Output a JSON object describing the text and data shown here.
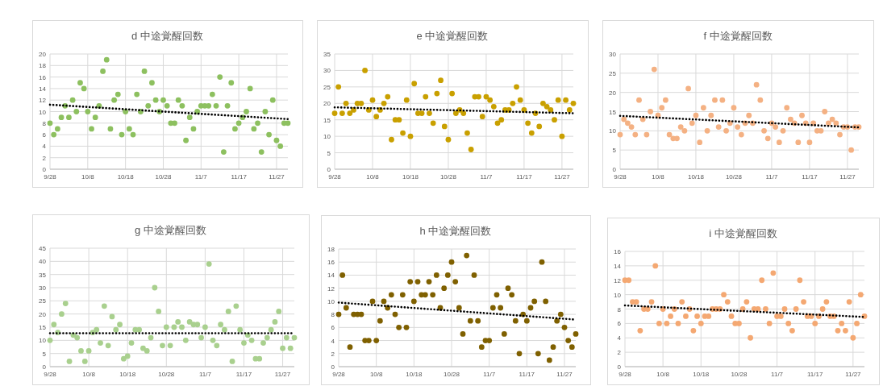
{
  "chart_data": [
    {
      "type": "scatter",
      "title": "d 中途覚醒回数",
      "marker": "circle",
      "grid": true,
      "x": [
        "--09-28",
        "--09-29",
        "--09-30",
        "--10-01",
        "--10-02",
        "--10-03",
        "--10-04",
        "--10-05",
        "--10-06",
        "--10-07",
        "--10-08",
        "--10-09",
        "--10-10",
        "--10-11",
        "--10-12",
        "--10-13",
        "--10-14",
        "--10-15",
        "--10-16",
        "--10-17",
        "--10-18",
        "--10-19",
        "--10-20",
        "--10-21",
        "--10-22",
        "--10-23",
        "--10-24",
        "--10-25",
        "--10-26",
        "--10-27",
        "--10-28",
        "--10-29",
        "--10-30",
        "--10-31",
        "--11-01",
        "--11-02",
        "--11-03",
        "--11-04",
        "--11-05",
        "--11-06",
        "--11-07",
        "--11-08",
        "--11-09",
        "--11-10",
        "--11-11",
        "--11-12",
        "--11-13",
        "--11-14",
        "--11-15",
        "--11-16",
        "--11-17",
        "--11-18",
        "--11-19",
        "--11-20",
        "--11-21",
        "--11-22",
        "--11-23",
        "--11-24",
        "--11-25",
        "--11-26",
        "--11-27",
        "--11-28",
        "--11-29",
        "--11-30"
      ],
      "xlim": [
        "--09-28",
        "--11-30"
      ],
      "xticks": [
        {
          "value": "--09-28",
          "label": "9/28"
        },
        {
          "value": "--10-08",
          "label": "10/8"
        },
        {
          "value": "--10-18",
          "label": "10/18"
        },
        {
          "value": "--10-28",
          "label": "10/28"
        },
        {
          "value": "--11-07",
          "label": "11/7"
        },
        {
          "value": "--11-17",
          "label": "11/17"
        },
        {
          "value": "--11-27",
          "label": "11/27"
        }
      ],
      "ylim": [
        0,
        20
      ],
      "yticks": [
        0,
        2,
        4,
        6,
        8,
        10,
        12,
        14,
        16,
        18,
        20
      ],
      "series": [
        {
          "color": "#8dc05f",
          "values": [
            8,
            6,
            7,
            9,
            11,
            9,
            12,
            10,
            15,
            14,
            10,
            7,
            9,
            11,
            17,
            19,
            7,
            12,
            13,
            6,
            10,
            7,
            6,
            13,
            10,
            17,
            11,
            15,
            12,
            10,
            12,
            11,
            8,
            8,
            12,
            11,
            5,
            9,
            7,
            10,
            11,
            11,
            11,
            13,
            11,
            16,
            3,
            11,
            15,
            7,
            8,
            9,
            10,
            14,
            7,
            8,
            3,
            10,
            6,
            12,
            5,
            4,
            8,
            8
          ]
        },
        {
          "type": "line",
          "x": [
            "--09-28",
            "--11-30"
          ],
          "values": [
            11.2,
            8.7
          ],
          "marker": "none",
          "color": "#000000",
          "line_style": "dotted"
        }
      ]
    },
    {
      "type": "scatter",
      "title": "e 中途覚醒回数",
      "marker": "circle",
      "grid": true,
      "x": [
        "--09-28",
        "--09-29",
        "--09-30",
        "--10-01",
        "--10-02",
        "--10-03",
        "--10-04",
        "--10-05",
        "--10-06",
        "--10-07",
        "--10-08",
        "--10-09",
        "--10-10",
        "--10-11",
        "--10-12",
        "--10-13",
        "--10-14",
        "--10-15",
        "--10-16",
        "--10-17",
        "--10-18",
        "--10-19",
        "--10-20",
        "--10-21",
        "--10-22",
        "--10-23",
        "--10-24",
        "--10-25",
        "--10-26",
        "--10-27",
        "--10-28",
        "--10-29",
        "--10-30",
        "--10-31",
        "--11-01",
        "--11-02",
        "--11-03",
        "--11-04",
        "--11-05",
        "--11-06",
        "--11-07",
        "--11-08",
        "--11-09",
        "--11-10",
        "--11-11",
        "--11-12",
        "--11-13",
        "--11-14",
        "--11-15",
        "--11-16",
        "--11-17",
        "--11-18",
        "--11-19",
        "--11-20",
        "--11-21",
        "--11-22",
        "--11-23",
        "--11-24",
        "--11-25",
        "--11-26",
        "--11-27",
        "--11-28",
        "--11-29",
        "--11-30"
      ],
      "xlim": [
        "--09-28",
        "--11-30"
      ],
      "xticks": [
        {
          "value": "--09-28",
          "label": "9/28"
        },
        {
          "value": "--10-08",
          "label": "10/8"
        },
        {
          "value": "--10-18",
          "label": "10/18"
        },
        {
          "value": "--10-28",
          "label": "10/28"
        },
        {
          "value": "--11-07",
          "label": "11/7"
        },
        {
          "value": "--11-17",
          "label": "11/17"
        },
        {
          "value": "--11-27",
          "label": "11/27"
        }
      ],
      "ylim": [
        0,
        35
      ],
      "yticks": [
        0,
        5,
        10,
        15,
        20,
        25,
        30,
        35
      ],
      "series": [
        {
          "color": "#c9a000",
          "values": [
            17,
            25,
            17,
            20,
            17,
            18,
            20,
            20,
            30,
            18,
            21,
            16,
            18,
            20,
            22,
            9,
            15,
            15,
            11,
            21,
            10,
            26,
            17,
            17,
            22,
            17,
            14,
            23,
            27,
            13,
            9,
            23,
            17,
            18,
            17,
            11,
            6,
            22,
            22,
            16,
            22,
            21,
            19,
            14,
            15,
            18,
            18,
            20,
            25,
            21,
            18,
            14,
            11,
            17,
            13,
            20,
            19,
            18,
            15,
            21,
            10,
            21,
            18,
            20
          ]
        },
        {
          "type": "line",
          "x": [
            "--09-28",
            "--11-30"
          ],
          "values": [
            18.8,
            17.0
          ],
          "marker": "none",
          "color": "#000000",
          "line_style": "dotted"
        }
      ]
    },
    {
      "type": "scatter",
      "title": "f 中途覚醒回数",
      "marker": "circle",
      "grid": true,
      "x": [
        "--09-28",
        "--09-29",
        "--09-30",
        "--10-01",
        "--10-02",
        "--10-03",
        "--10-04",
        "--10-05",
        "--10-06",
        "--10-07",
        "--10-08",
        "--10-09",
        "--10-10",
        "--10-11",
        "--10-12",
        "--10-13",
        "--10-14",
        "--10-15",
        "--10-16",
        "--10-17",
        "--10-18",
        "--10-19",
        "--10-20",
        "--10-21",
        "--10-22",
        "--10-23",
        "--10-24",
        "--10-25",
        "--10-26",
        "--10-27",
        "--10-28",
        "--10-29",
        "--10-30",
        "--10-31",
        "--11-01",
        "--11-02",
        "--11-03",
        "--11-04",
        "--11-05",
        "--11-06",
        "--11-07",
        "--11-08",
        "--11-09",
        "--11-10",
        "--11-11",
        "--11-12",
        "--11-13",
        "--11-14",
        "--11-15",
        "--11-16",
        "--11-17",
        "--11-18",
        "--11-19",
        "--11-20",
        "--11-21",
        "--11-22",
        "--11-23",
        "--11-24",
        "--11-25",
        "--11-26",
        "--11-27",
        "--11-28",
        "--11-29",
        "--11-30"
      ],
      "xlim": [
        "--09-28",
        "--11-30"
      ],
      "xticks": [
        {
          "value": "--09-28",
          "label": "9/28"
        },
        {
          "value": "--10-08",
          "label": "10/8"
        },
        {
          "value": "--10-18",
          "label": "10/18"
        },
        {
          "value": "--10-28",
          "label": "10/28"
        },
        {
          "value": "--11-07",
          "label": "11/7"
        },
        {
          "value": "--11-17",
          "label": "11/17"
        },
        {
          "value": "--11-27",
          "label": "11/27"
        }
      ],
      "ylim": [
        0,
        30
      ],
      "yticks": [
        0,
        5,
        10,
        15,
        20,
        25,
        30
      ],
      "series": [
        {
          "color": "#f4b183",
          "values": [
            9,
            13,
            12,
            11,
            9,
            18,
            13,
            9,
            15,
            26,
            14,
            16,
            18,
            9,
            8,
            8,
            11,
            10,
            21,
            12,
            14,
            7,
            16,
            10,
            14,
            18,
            11,
            18,
            10,
            12,
            16,
            11,
            9,
            12,
            14,
            12,
            22,
            18,
            10,
            8,
            12,
            11,
            7,
            10,
            16,
            13,
            12,
            7,
            14,
            12,
            7,
            12,
            10,
            10,
            15,
            12,
            13,
            12,
            9,
            11,
            11,
            5,
            11,
            11
          ]
        },
        {
          "type": "line",
          "x": [
            "--09-28",
            "--11-30"
          ],
          "values": [
            13.9,
            10.9
          ],
          "marker": "none",
          "color": "#000000",
          "line_style": "dotted"
        }
      ]
    },
    {
      "type": "scatter",
      "title": "g 中途覚醒回数",
      "marker": "circle",
      "grid": true,
      "x": [
        "--09-28",
        "--09-29",
        "--09-30",
        "--10-01",
        "--10-02",
        "--10-03",
        "--10-04",
        "--10-05",
        "--10-06",
        "--10-07",
        "--10-08",
        "--10-09",
        "--10-10",
        "--10-11",
        "--10-12",
        "--10-13",
        "--10-14",
        "--10-15",
        "--10-16",
        "--10-17",
        "--10-18",
        "--10-19",
        "--10-20",
        "--10-21",
        "--10-22",
        "--10-23",
        "--10-24",
        "--10-25",
        "--10-26",
        "--10-27",
        "--10-28",
        "--10-29",
        "--10-30",
        "--10-31",
        "--11-01",
        "--11-02",
        "--11-03",
        "--11-04",
        "--11-05",
        "--11-06",
        "--11-07",
        "--11-08",
        "--11-09",
        "--11-10",
        "--11-11",
        "--11-12",
        "--11-13",
        "--11-14",
        "--11-15",
        "--11-16",
        "--11-17",
        "--11-18",
        "--11-19",
        "--11-20",
        "--11-21",
        "--11-22",
        "--11-23",
        "--11-24",
        "--11-25",
        "--11-26",
        "--11-27",
        "--11-28",
        "--11-29",
        "--11-30"
      ],
      "xlim": [
        "--09-28",
        "--11-30"
      ],
      "xticks": [
        {
          "value": "--09-28",
          "label": "9/28"
        },
        {
          "value": "--10-08",
          "label": "10/8"
        },
        {
          "value": "--10-18",
          "label": "10/18"
        },
        {
          "value": "--10-28",
          "label": "10/28"
        },
        {
          "value": "--11-07",
          "label": "11/7"
        },
        {
          "value": "--11-17",
          "label": "11/17"
        },
        {
          "value": "--11-27",
          "label": "11/27"
        }
      ],
      "ylim": [
        0,
        45
      ],
      "yticks": [
        0,
        5,
        10,
        15,
        20,
        25,
        30,
        35,
        40,
        45
      ],
      "series": [
        {
          "color": "#a9d08e",
          "values": [
            10,
            16,
            13,
            20,
            24,
            2,
            12,
            11,
            6,
            2,
            6,
            13,
            14,
            9,
            23,
            8,
            19,
            14,
            16,
            3,
            4,
            9,
            14,
            14,
            7,
            6,
            11,
            30,
            21,
            8,
            15,
            8,
            15,
            17,
            15,
            10,
            17,
            16,
            16,
            11,
            15,
            39,
            10,
            8,
            16,
            14,
            21,
            2,
            23,
            14,
            9,
            12,
            10,
            3,
            3,
            9,
            11,
            14,
            17,
            21,
            7,
            11,
            7,
            11
          ]
        },
        {
          "type": "line",
          "x": [
            "--09-28",
            "--11-30"
          ],
          "values": [
            12.7,
            12.7
          ],
          "marker": "none",
          "color": "#000000",
          "line_style": "dotted"
        }
      ]
    },
    {
      "type": "scatter",
      "title": "h 中途覚醒回数",
      "marker": "circle",
      "grid": true,
      "x": [
        "--09-28",
        "--09-29",
        "--09-30",
        "--10-01",
        "--10-02",
        "--10-03",
        "--10-04",
        "--10-05",
        "--10-06",
        "--10-07",
        "--10-08",
        "--10-09",
        "--10-10",
        "--10-11",
        "--10-12",
        "--10-13",
        "--10-14",
        "--10-15",
        "--10-16",
        "--10-17",
        "--10-18",
        "--10-19",
        "--10-20",
        "--10-21",
        "--10-22",
        "--10-23",
        "--10-24",
        "--10-25",
        "--10-26",
        "--10-27",
        "--10-28",
        "--10-29",
        "--10-30",
        "--10-31",
        "--11-01",
        "--11-02",
        "--11-03",
        "--11-04",
        "--11-05",
        "--11-06",
        "--11-07",
        "--11-08",
        "--11-09",
        "--11-10",
        "--11-11",
        "--11-12",
        "--11-13",
        "--11-14",
        "--11-15",
        "--11-16",
        "--11-17",
        "--11-18",
        "--11-19",
        "--11-20",
        "--11-21",
        "--11-22",
        "--11-23",
        "--11-24",
        "--11-25",
        "--11-26",
        "--11-27",
        "--11-28",
        "--11-29",
        "--11-30"
      ],
      "xlim": [
        "--09-28",
        "--11-30"
      ],
      "xticks": [
        {
          "value": "--09-28",
          "label": "9/28"
        },
        {
          "value": "--10-08",
          "label": "10/8"
        },
        {
          "value": "--10-18",
          "label": "10/18"
        },
        {
          "value": "--10-28",
          "label": "10/28"
        },
        {
          "value": "--11-07",
          "label": "11/7"
        },
        {
          "value": "--11-17",
          "label": "11/17"
        },
        {
          "value": "--11-27",
          "label": "11/27"
        }
      ],
      "ylim": [
        0,
        18
      ],
      "yticks": [
        0,
        2,
        4,
        6,
        8,
        10,
        12,
        14,
        16,
        18
      ],
      "series": [
        {
          "color": "#7f6000",
          "values": [
            8,
            14,
            9,
            3,
            8,
            8,
            8,
            4,
            4,
            10,
            4,
            7,
            10,
            9,
            11,
            8,
            6,
            11,
            6,
            13,
            10,
            13,
            11,
            11,
            13,
            11,
            14,
            9,
            12,
            14,
            16,
            13,
            9,
            5,
            17,
            7,
            14,
            7,
            3,
            4,
            4,
            9,
            11,
            9,
            5,
            12,
            11,
            7,
            2,
            8,
            7,
            9,
            10,
            2,
            16,
            10,
            1,
            3,
            7,
            8,
            6,
            4,
            3,
            5
          ]
        },
        {
          "type": "line",
          "x": [
            "--09-28",
            "--11-30"
          ],
          "values": [
            9.8,
            7.2
          ],
          "marker": "none",
          "color": "#000000",
          "line_style": "dotted"
        }
      ]
    },
    {
      "type": "scatter",
      "title": "i 中途覚醒回数",
      "marker": "circle",
      "grid": true,
      "x": [
        "--09-28",
        "--09-29",
        "--09-30",
        "--10-01",
        "--10-02",
        "--10-03",
        "--10-04",
        "--10-05",
        "--10-06",
        "--10-07",
        "--10-08",
        "--10-09",
        "--10-10",
        "--10-11",
        "--10-12",
        "--10-13",
        "--10-14",
        "--10-15",
        "--10-16",
        "--10-17",
        "--10-18",
        "--10-19",
        "--10-20",
        "--10-21",
        "--10-22",
        "--10-23",
        "--10-24",
        "--10-25",
        "--10-26",
        "--10-27",
        "--10-28",
        "--10-29",
        "--10-30",
        "--10-31",
        "--11-01",
        "--11-02",
        "--11-03",
        "--11-04",
        "--11-05",
        "--11-06",
        "--11-07",
        "--11-08",
        "--11-09",
        "--11-10",
        "--11-11",
        "--11-12",
        "--11-13",
        "--11-14",
        "--11-15",
        "--11-16",
        "--11-17",
        "--11-18",
        "--11-19",
        "--11-20",
        "--11-21",
        "--11-22",
        "--11-23",
        "--11-24",
        "--11-25",
        "--11-26",
        "--11-27",
        "--11-28",
        "--11-29",
        "--11-30"
      ],
      "xlim": [
        "--09-28",
        "--11-30"
      ],
      "xticks": [
        {
          "value": "--09-28",
          "label": "9/28"
        },
        {
          "value": "--10-08",
          "label": "10/8"
        },
        {
          "value": "--10-18",
          "label": "10/18"
        },
        {
          "value": "--10-28",
          "label": "10/28"
        },
        {
          "value": "--11-07",
          "label": "11/7"
        },
        {
          "value": "--11-17",
          "label": "11/17"
        },
        {
          "value": "--11-27",
          "label": "11/27"
        }
      ],
      "ylim": [
        0,
        16
      ],
      "yticks": [
        0,
        2,
        4,
        6,
        8,
        10,
        12,
        14,
        16
      ],
      "series": [
        {
          "color": "#f4a872",
          "values": [
            12,
            12,
            9,
            9,
            5,
            8,
            8,
            9,
            14,
            6,
            8,
            6,
            7,
            8,
            6,
            9,
            7,
            8,
            5,
            7,
            6,
            7,
            7,
            8,
            8,
            8,
            10,
            9,
            7,
            6,
            6,
            8,
            9,
            4,
            8,
            8,
            12,
            8,
            6,
            13,
            7,
            7,
            8,
            6,
            5,
            8,
            12,
            9,
            7,
            7,
            6,
            7,
            8,
            9,
            7,
            7,
            5,
            6,
            5,
            9,
            4,
            6,
            10,
            7
          ]
        },
        {
          "type": "line",
          "x": [
            "--09-28",
            "--11-30"
          ],
          "values": [
            8.5,
            6.9
          ],
          "marker": "none",
          "color": "#000000",
          "line_style": "dotted"
        }
      ]
    }
  ]
}
